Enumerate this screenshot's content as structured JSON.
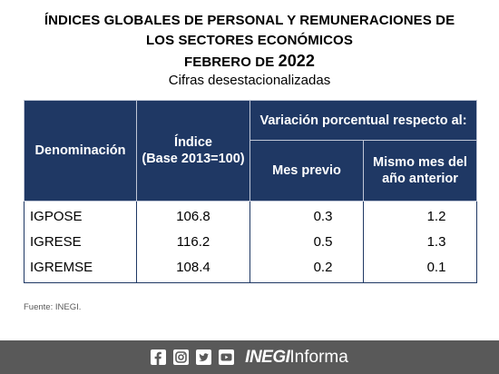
{
  "title": {
    "line1": "ÍNDICES GLOBALES DE PERSONAL Y REMUNERACIONES DE",
    "line2": "LOS SECTORES ECONÓMICOS",
    "line3_prefix": "FEBRERO DE ",
    "line3_year": "2022",
    "subtitle": "Cifras desestacionalizadas"
  },
  "table": {
    "headers": {
      "denominacion": "Denominación",
      "indice_line1": "Índice",
      "indice_line2": "(Base 2013=100)",
      "variacion": "Variación porcentual respecto al:",
      "mes_previo": "Mes previo",
      "mismo_mes_line1": "Mismo mes del",
      "mismo_mes_line2": "año anterior"
    },
    "rows": [
      {
        "name": "IGPOSE",
        "indice": "106.8",
        "mes_previo": "0.3",
        "anio_anterior": "1.2"
      },
      {
        "name": "IGRESE",
        "indice": "116.2",
        "mes_previo": "0.5",
        "anio_anterior": "1.3"
      },
      {
        "name": "IGREMSE",
        "indice": "108.4",
        "mes_previo": "0.2",
        "anio_anterior": "0.1"
      }
    ]
  },
  "source": "Fuente: INEGI.",
  "footer": {
    "brand_bold": "INEGI",
    "brand_regular": "Informa",
    "icons": [
      "facebook-icon",
      "instagram-icon",
      "twitter-icon",
      "youtube-icon"
    ]
  },
  "colors": {
    "header_bg": "#1f3864",
    "footer_bg": "#595959"
  }
}
